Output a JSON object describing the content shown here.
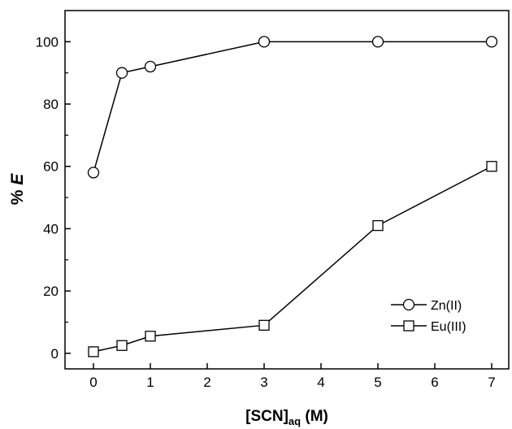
{
  "chart_data": {
    "type": "line",
    "title": "",
    "xlabel": {
      "main": "[SCN]",
      "sub": "aq",
      "unit": " (M)"
    },
    "ylabel": {
      "prefix": "% ",
      "var": "E"
    },
    "xlim": [
      -0.5,
      7.3
    ],
    "ylim": [
      -5,
      110
    ],
    "xticks": [
      0,
      1,
      2,
      3,
      4,
      5,
      6,
      7
    ],
    "yticks": [
      0,
      20,
      40,
      60,
      80,
      100
    ],
    "grid": false,
    "legend": "bottom-right",
    "series": [
      {
        "name": "Zn(II)",
        "marker": "circle",
        "x": [
          0,
          0.5,
          1,
          3,
          5,
          7
        ],
        "y": [
          58,
          90,
          92,
          100,
          100,
          100
        ]
      },
      {
        "name": "Eu(III)",
        "marker": "square",
        "x": [
          0,
          0.5,
          1,
          3,
          5,
          7
        ],
        "y": [
          0.5,
          2.5,
          5.5,
          9,
          41,
          60
        ]
      }
    ]
  }
}
